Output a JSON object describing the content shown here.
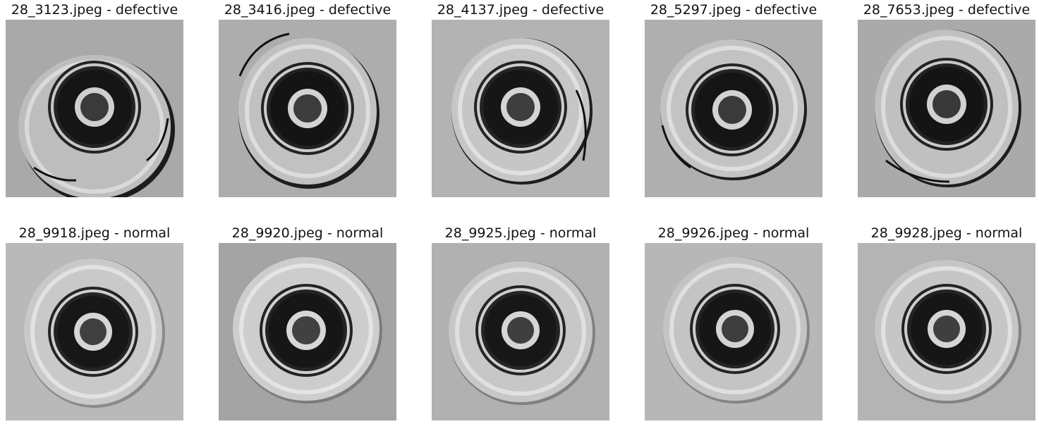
{
  "grid": {
    "images": [
      {
        "label": "28_3123.jpeg - defective",
        "status": "defective"
      },
      {
        "label": "28_3416.jpeg - defective",
        "status": "defective"
      },
      {
        "label": "28_4137.jpeg - defective",
        "status": "defective"
      },
      {
        "label": "28_5297.jpeg - defective",
        "status": "defective"
      },
      {
        "label": "28_7653.jpeg - defective",
        "status": "defective"
      },
      {
        "label": "28_9918.jpeg - normal",
        "status": "normal"
      },
      {
        "label": "28_9920.jpeg - normal",
        "status": "normal"
      },
      {
        "label": "28_9925.jpeg - normal",
        "status": "normal"
      },
      {
        "label": "28_9926.jpeg - normal",
        "status": "normal"
      },
      {
        "label": "28_9928.jpeg - normal",
        "status": "normal"
      }
    ]
  }
}
